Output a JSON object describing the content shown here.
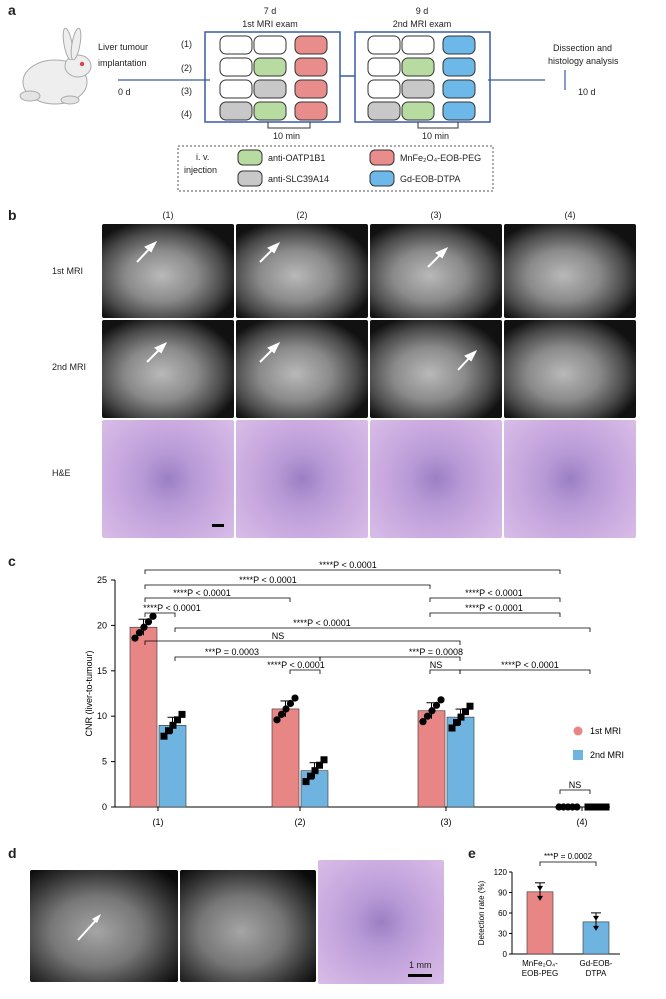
{
  "panels": {
    "a": "a",
    "b": "b",
    "c": "c",
    "d": "d",
    "e": "e"
  },
  "schematic": {
    "left_label_1": "Liver tumour",
    "left_label_2": "implantation",
    "day0": "0 d",
    "exam1_day": "7 d",
    "exam1_title": "1st MRI exam",
    "exam2_day": "9 d",
    "exam2_title": "2nd MRI exam",
    "right_label_1": "Dissection and",
    "right_label_2": "histology analysis",
    "day10": "10 d",
    "groups": [
      "(1)",
      "(2)",
      "(3)",
      "(4)"
    ],
    "interval1": "10 min",
    "interval2": "10 min",
    "legend_title_1": "i. v.",
    "legend_title_2": "injection",
    "legend": [
      {
        "label": "anti-OATP1B1",
        "color": "#b7dba0"
      },
      {
        "label": "anti-SLC39A14",
        "color": "#c8c8c8"
      },
      {
        "label": "MnFe₂O₄-EOB-PEG",
        "color": "#e88c8c"
      },
      {
        "label": "Gd-EOB-DTPA",
        "color": "#6cb8e8"
      }
    ]
  },
  "panel_b": {
    "columns": [
      "(1)",
      "(2)",
      "(3)",
      "(4)"
    ],
    "rows": [
      "1st MRI",
      "2nd MRI",
      "H&E"
    ]
  },
  "chart_data": [
    {
      "type": "bar",
      "categories": [
        "(1)",
        "(2)",
        "(3)",
        "(4)"
      ],
      "series": [
        {
          "name": "1st MRI",
          "values": [
            19.8,
            10.8,
            10.6,
            0
          ],
          "color": "#e88585"
        },
        {
          "name": "2nd MRI",
          "values": [
            9.0,
            4.0,
            9.9,
            0
          ],
          "color": "#6fb4e0"
        }
      ],
      "ylabel": "CNR (liver-to-tumour)",
      "ylim": [
        0,
        25
      ],
      "yticks": [
        0,
        5,
        10,
        15,
        20,
        25
      ],
      "legend_position": "right",
      "annotations": [
        "****P < 0.0001",
        "****P < 0.0001",
        "****P < 0.0001",
        "****P < 0.0001",
        "****P < 0.0001",
        "****P < 0.0001",
        "****P < 0.0001",
        "NS",
        "***P = 0.0003",
        "****P < 0.0001",
        "***P = 0.0008",
        "NS",
        "****P < 0.0001",
        "NS"
      ]
    },
    {
      "type": "bar",
      "categories": [
        "MnFe₂O₄-EOB-PEG",
        "Gd-EOB-DTPA"
      ],
      "values": [
        91,
        47
      ],
      "colors": [
        "#e88585",
        "#6fb4e0"
      ],
      "ylabel": "Detection rate (%)",
      "ylim": [
        0,
        120
      ],
      "yticks": [
        0,
        30,
        60,
        90,
        120
      ],
      "annotation": "***P = 0.0002"
    }
  ],
  "panel_d": {
    "scale_label": "1 mm"
  }
}
